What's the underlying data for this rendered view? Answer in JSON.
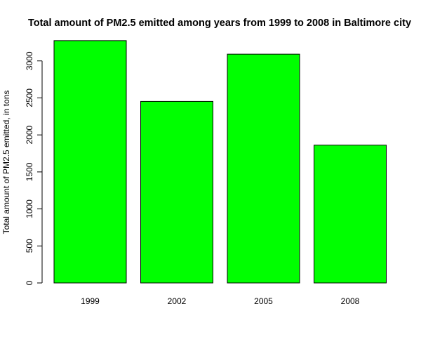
{
  "chart_data": {
    "type": "bar",
    "title": "Total amount of PM2.5 emitted among years from 1999 to 2008 in Baltimore city",
    "xlabel": "",
    "ylabel": "Total amount of PM2.5 emitted, in tons",
    "categories": [
      "1999",
      "2002",
      "2005",
      "2008"
    ],
    "values": [
      3274,
      2453,
      3091,
      1862
    ],
    "ylim": [
      0,
      3274
    ],
    "yticks": [
      0,
      500,
      1000,
      1500,
      2000,
      2500,
      3000
    ],
    "bar_color": "#00ff00",
    "bar_border_color": "#000000",
    "grid": false,
    "legend": "none"
  }
}
